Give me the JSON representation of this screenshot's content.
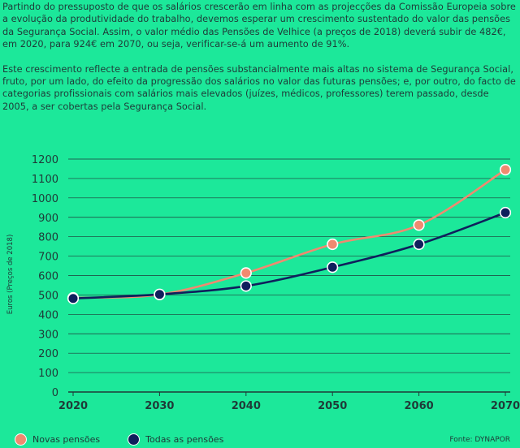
{
  "text": {
    "paragraph_1": "Partindo do pressuposto de que os salários crescerão em linha com as projecções da Comissão Europeia sobre a evolução da produtividade do trabalho, devemos esperar um crescimento sustentado do valor das pensões da Segurança Social. Assim, o valor médio das Pensões de Velhice (a preços de 2018) deverá subir de 482€, em 2020, para 924€ em 2070, ou seja, verificar-se-á um aumento de 91%.",
    "paragraph_2": "Este crescimento reflecte a entrada de pensões substancialmente mais altas no sistema de Segurança Social, fruto, por um lado, do efeito da progressão dos salários no valor das futuras pensões; e, por outro, do facto de categorias profissionais com salários mais elevados (juízes, médicos, professores) terem passado, desde 2005, a ser cobertas pela Segurança Social."
  },
  "source": "Fonte: DYNAPOR",
  "colors": {
    "background": "#1ce89a",
    "novas": "#f08a70",
    "todas": "#0f1f5c",
    "grid": "#1f3a38"
  },
  "chart_data": {
    "type": "line",
    "title": "",
    "xlabel": "",
    "ylabel": "Euros (Preços de 2018)",
    "x": [
      2020,
      2030,
      2040,
      2050,
      2060,
      2070
    ],
    "xticks": [
      "2020",
      "2030",
      "2040",
      "2050",
      "2060",
      "2070"
    ],
    "yticks": [
      "0",
      "100",
      "200",
      "300",
      "400",
      "500",
      "600",
      "700",
      "800",
      "900",
      "1000",
      "1100",
      "1200"
    ],
    "ylim": [
      0,
      1200
    ],
    "grid": true,
    "legend_position": "bottom-left",
    "series": [
      {
        "name": "Novas pensões",
        "color": "#f08a70",
        "values": [
          485,
          502,
          613,
          761,
          860,
          1145
        ]
      },
      {
        "name": "Todas as pensões",
        "color": "#0f1f5c",
        "values": [
          482,
          503,
          546,
          643,
          761,
          924
        ]
      }
    ]
  }
}
